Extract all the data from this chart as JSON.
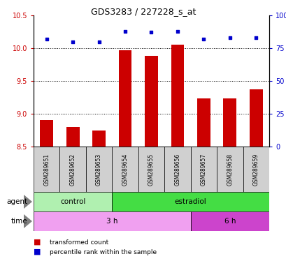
{
  "title": "GDS3283 / 227228_s_at",
  "samples": [
    "GSM289651",
    "GSM289652",
    "GSM289653",
    "GSM289654",
    "GSM289655",
    "GSM289656",
    "GSM289657",
    "GSM289658",
    "GSM289659"
  ],
  "bar_values": [
    8.9,
    8.8,
    8.75,
    9.97,
    9.88,
    10.05,
    9.23,
    9.23,
    9.37
  ],
  "dot_values": [
    82,
    80,
    80,
    88,
    87,
    88,
    82,
    83,
    83
  ],
  "bar_color": "#cc0000",
  "dot_color": "#0000cc",
  "ylim_left": [
    8.5,
    10.5
  ],
  "ylim_right": [
    0,
    100
  ],
  "yticks_left": [
    8.5,
    9.0,
    9.5,
    10.0,
    10.5
  ],
  "yticks_right": [
    0,
    25,
    50,
    75,
    100
  ],
  "ytick_labels_right": [
    "0",
    "25",
    "50",
    "75",
    "100%"
  ],
  "agent_labels": [
    {
      "text": "control",
      "start": 0,
      "end": 3,
      "color": "#b0f0b0"
    },
    {
      "text": "estradiol",
      "start": 3,
      "end": 9,
      "color": "#44dd44"
    }
  ],
  "time_labels": [
    {
      "text": "3 h",
      "start": 0,
      "end": 6,
      "color": "#f0a0f0"
    },
    {
      "text": "6 h",
      "start": 6,
      "end": 9,
      "color": "#cc44cc"
    }
  ],
  "legend_bar_label": "transformed count",
  "legend_dot_label": "percentile rank within the sample",
  "agent_row_label": "agent",
  "time_row_label": "time",
  "bar_base": 8.5,
  "left_color": "#cc0000",
  "right_color": "#0000cc",
  "sample_bg": "#d0d0d0",
  "grid_yticks": [
    9.0,
    9.5,
    10.0
  ]
}
